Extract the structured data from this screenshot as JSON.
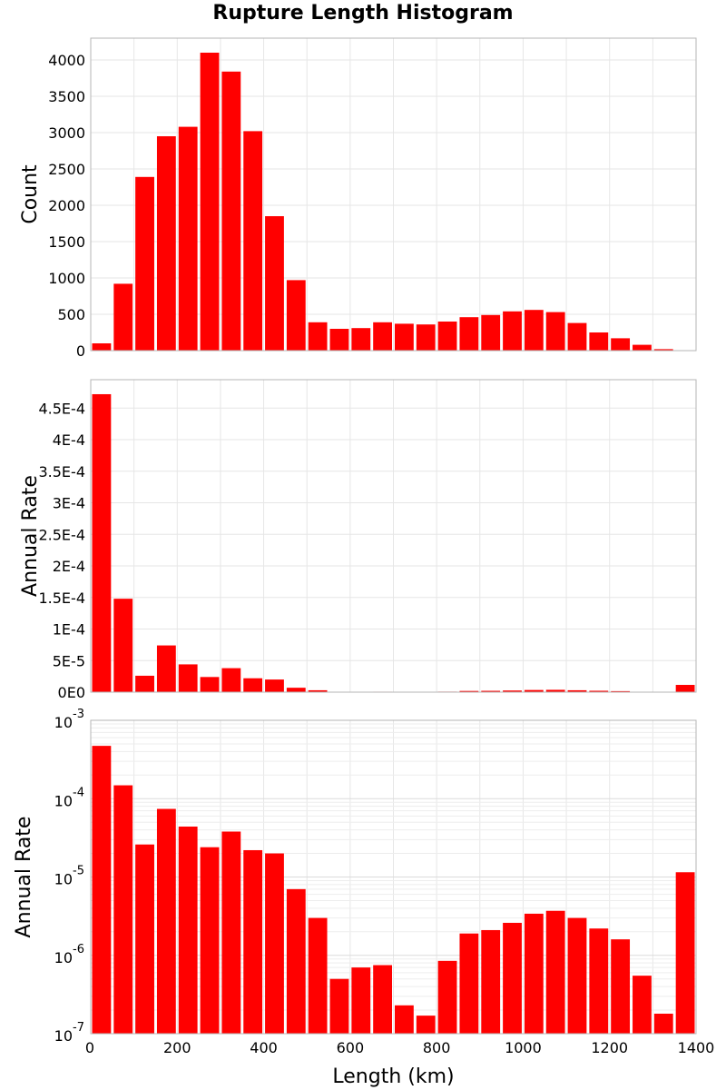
{
  "chart_data": {
    "title": "Rupture Length Histogram",
    "type": "bar",
    "bar_color": "#ff0000",
    "grid": true,
    "x": [
      25,
      75,
      125,
      175,
      225,
      275,
      325,
      375,
      425,
      475,
      525,
      575,
      625,
      675,
      725,
      775,
      825,
      875,
      925,
      975,
      1025,
      1075,
      1125,
      1175,
      1225,
      1275,
      1325,
      1375
    ],
    "bin_width": 50,
    "xlabel": "Length (km)",
    "xlim": [
      0,
      1400
    ],
    "xticks": [
      "0",
      "200",
      "400",
      "600",
      "800",
      "1000",
      "1200",
      "1400"
    ],
    "panels": [
      {
        "ylabel": "Count",
        "scale": "linear",
        "ylim": [
          0,
          4300
        ],
        "yticks": [
          0,
          500,
          1000,
          1500,
          2000,
          2500,
          3000,
          3500,
          4000
        ],
        "ytick_labels": [
          "0",
          "500",
          "1000",
          "1500",
          "2000",
          "2500",
          "3000",
          "3500",
          "4000"
        ],
        "values": [
          100,
          920,
          2390,
          2950,
          3080,
          4100,
          3840,
          3020,
          1850,
          970,
          390,
          300,
          310,
          390,
          370,
          360,
          400,
          460,
          490,
          540,
          560,
          530,
          380,
          250,
          170,
          80,
          20,
          5
        ]
      },
      {
        "ylabel": "Annual Rate",
        "scale": "linear",
        "ylim": [
          0,
          0.000495
        ],
        "yticks": [
          0,
          5e-05,
          0.0001,
          0.00015,
          0.0002,
          0.00025,
          0.0003,
          0.00035,
          0.0004,
          0.00045
        ],
        "ytick_labels": [
          "0E0",
          "5E-5",
          "1E-4",
          "1.5E-4",
          "2E-4",
          "2.5E-4",
          "3E-4",
          "3.5E-4",
          "4E-4",
          "4.5E-4"
        ],
        "values": [
          0.000472,
          0.000148,
          2.6e-05,
          7.4e-05,
          4.4e-05,
          2.4e-05,
          3.8e-05,
          2.2e-05,
          2e-05,
          7e-06,
          3e-06,
          5e-07,
          7e-07,
          7.5e-07,
          2.3e-07,
          1.7e-07,
          8.5e-07,
          1.9e-06,
          2.1e-06,
          2.6e-06,
          3.4e-06,
          3.7e-06,
          3e-06,
          2.2e-06,
          1.6e-06,
          5.5e-07,
          1.8e-07,
          1.15e-05
        ]
      },
      {
        "ylabel": "Annual Rate",
        "scale": "log",
        "ylim": [
          1e-07,
          0.001
        ],
        "yticks": [
          1e-07,
          1e-06,
          1e-05,
          0.0001,
          0.001
        ],
        "ytick_labels": [
          {
            "base": "10",
            "exp": "-7"
          },
          {
            "base": "10",
            "exp": "-6"
          },
          {
            "base": "10",
            "exp": "-5"
          },
          {
            "base": "10",
            "exp": "-4"
          },
          {
            "base": "10",
            "exp": "-3"
          }
        ],
        "values": [
          0.000472,
          0.000148,
          2.6e-05,
          7.4e-05,
          4.4e-05,
          2.4e-05,
          3.8e-05,
          2.2e-05,
          2e-05,
          7e-06,
          3e-06,
          5e-07,
          7e-07,
          7.5e-07,
          2.3e-07,
          1.7e-07,
          8.5e-07,
          1.9e-06,
          2.1e-06,
          2.6e-06,
          3.4e-06,
          3.7e-06,
          3e-06,
          2.2e-06,
          1.6e-06,
          5.5e-07,
          1.8e-07,
          1.15e-05
        ]
      }
    ]
  }
}
